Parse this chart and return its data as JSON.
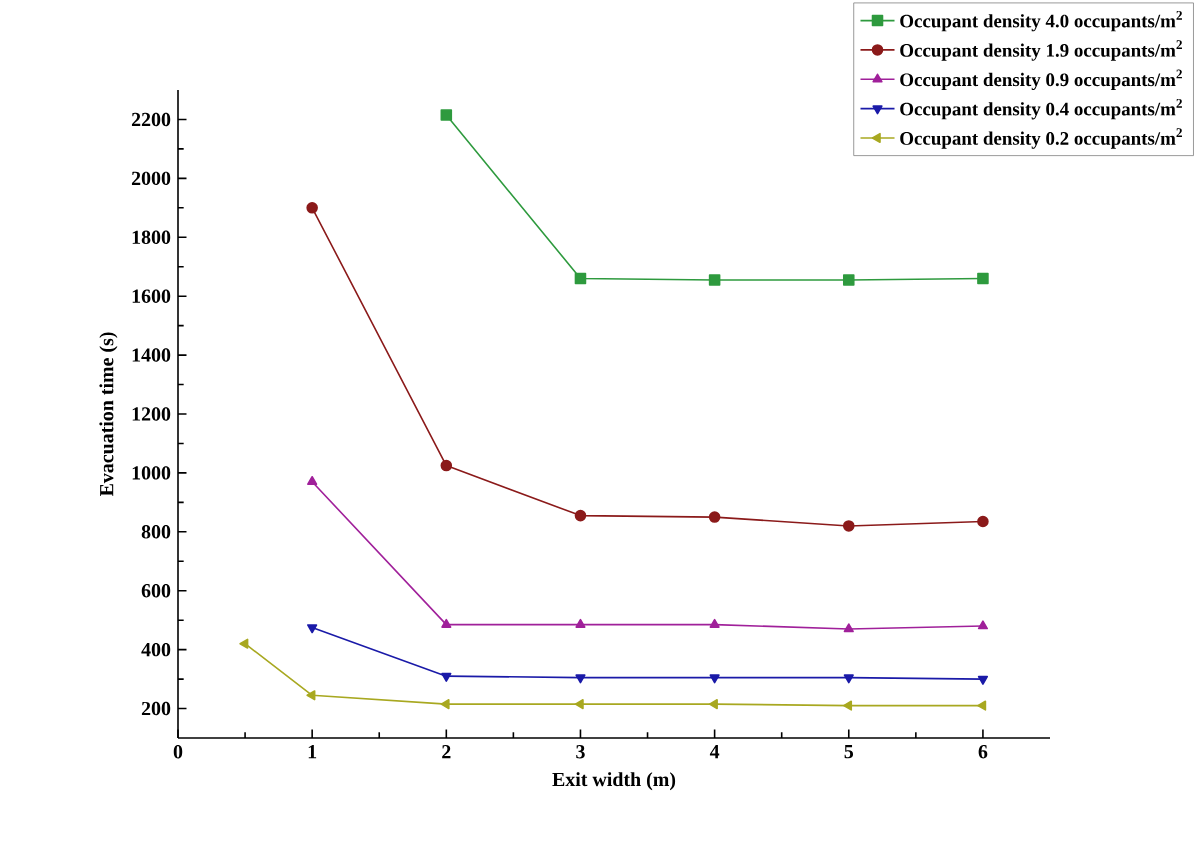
{
  "chart_data": {
    "type": "line",
    "xlabel": "Exit width (m)",
    "ylabel": "Evacuation time (s)",
    "xlim": [
      0,
      6.5
    ],
    "ylim": [
      100,
      2300
    ],
    "xticks": [
      0,
      1,
      2,
      3,
      4,
      5,
      6
    ],
    "yticks": [
      200,
      400,
      600,
      800,
      1000,
      1200,
      1400,
      1600,
      1800,
      2000,
      2200
    ],
    "legend": "top right",
    "grid": false,
    "line_style": "solid",
    "series": [
      {
        "name": "Occupant density 4.0 occupants/m$^{2}$",
        "color": "#2e9a3e",
        "marker": "square",
        "x": [
          2,
          3,
          4,
          5,
          6
        ],
        "values": [
          2215,
          1660,
          1655,
          1655,
          1660
        ]
      },
      {
        "name": "Occupant density 1.9 occupants/m$^{2}$",
        "color": "#8b1a1a",
        "marker": "circle",
        "x": [
          1,
          2,
          3,
          4,
          5,
          6
        ],
        "values": [
          1900,
          1025,
          855,
          850,
          820,
          835
        ]
      },
      {
        "name": "Occupant density 0.9 occupants/m$^{2}$",
        "color": "#a0209a",
        "marker": "triangle",
        "x": [
          1,
          2,
          3,
          4,
          5,
          6
        ],
        "values": [
          970,
          485,
          485,
          485,
          470,
          480
        ]
      },
      {
        "name": "Occupant density 0.4 occupants/m$^{2}$",
        "color": "#1a1aa8",
        "marker": "triangle-down",
        "x": [
          1,
          2,
          3,
          4,
          5,
          6
        ],
        "values": [
          475,
          310,
          305,
          305,
          305,
          300
        ]
      },
      {
        "name": "Occupant density 0.2 occupants/m$^{2}$",
        "color": "#a8a820",
        "marker": "triangle-left",
        "x": [
          0.5,
          1,
          2,
          3,
          4,
          5,
          6
        ],
        "values": [
          420,
          245,
          215,
          215,
          215,
          210,
          210
        ]
      }
    ]
  }
}
